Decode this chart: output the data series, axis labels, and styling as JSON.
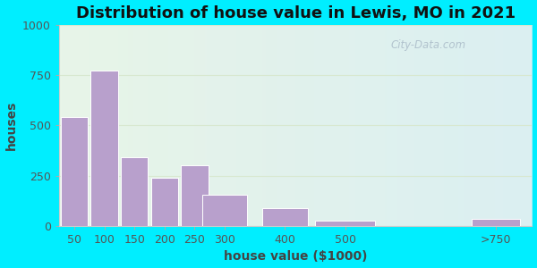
{
  "title": "Distribution of house value in Lewis, MO in 2021",
  "xlabel": "house value ($1000)",
  "ylabel": "houses",
  "categories": [
    "50",
    "100",
    "150",
    "200",
    "250",
    "300",
    "400",
    "500",
    ">750"
  ],
  "values": [
    540,
    775,
    340,
    240,
    300,
    155,
    90,
    25,
    35
  ],
  "bar_color": "#b8a0cc",
  "bar_edgecolor": "#ffffff",
  "ylim": [
    0,
    1000
  ],
  "yticks": [
    0,
    250,
    500,
    750,
    1000
  ],
  "background_outer": "#00eeff",
  "background_inner_left": "#e8f5e8",
  "background_inner_right": "#d8eef5",
  "grid_color": "#d8e8d0",
  "title_fontsize": 13,
  "axis_label_fontsize": 10,
  "tick_fontsize": 9,
  "watermark_text": "City-Data.com",
  "watermark_color": "#aabbc8",
  "x_positions": [
    50,
    100,
    150,
    200,
    250,
    300,
    400,
    500,
    750
  ],
  "bin_widths": [
    45,
    45,
    45,
    45,
    45,
    75,
    75,
    100,
    80
  ],
  "xlim_left": 25,
  "xlim_right": 810
}
